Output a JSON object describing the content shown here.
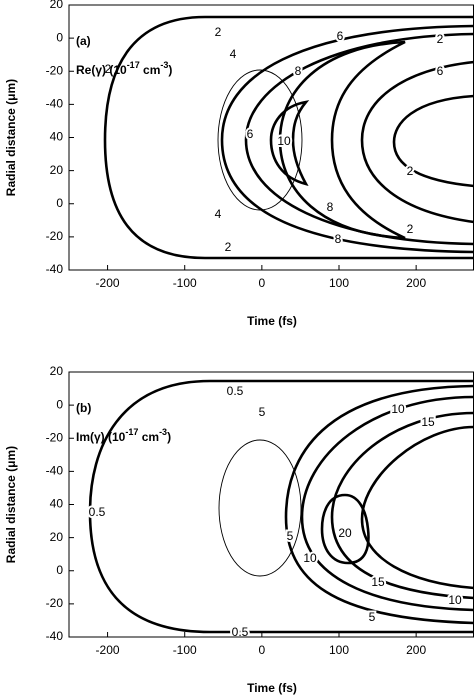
{
  "chart_data": [
    {
      "type": "contour",
      "panel_label": "(a)",
      "annotation": [
        "Re(γ) (10",
        "-17",
        " cm",
        "-3",
        ")"
      ],
      "x_label": "Time (fs)",
      "y_label": "Radial distance (μm)",
      "xlim": [
        -250,
        275
      ],
      "xticks": [
        -200,
        -100,
        0,
        100,
        200
      ],
      "ylim": [
        -40,
        120
      ],
      "yticks": [
        -40,
        -20,
        0,
        20,
        40,
        {
          "value": 60,
          "label": "-40"
        },
        {
          "value": 80,
          "label": "-20"
        },
        {
          "value": 100,
          "label": "0"
        },
        {
          "value": 120,
          "label": "20"
        }
      ],
      "levels": [
        2,
        4,
        6,
        8,
        10
      ],
      "color": "#000000"
    },
    {
      "type": "contour",
      "panel_label": "(b)",
      "annotation": [
        "Im(γ) (10",
        "-17",
        " cm",
        "-3",
        ")"
      ],
      "x_label": "Time (fs)",
      "y_label": "Radial distance (μm)",
      "xlim": [
        -250,
        275
      ],
      "xticks": [
        -200,
        -100,
        0,
        100,
        200
      ],
      "ylim": [
        -40,
        120
      ],
      "yticks": [
        -40,
        -20,
        0,
        20,
        40,
        {
          "value": 60,
          "label": "-40"
        },
        {
          "value": 80,
          "label": "-20"
        },
        {
          "value": 100,
          "label": "0"
        },
        {
          "value": 120,
          "label": "20"
        }
      ],
      "levels": [
        0.5,
        5,
        10,
        15,
        20
      ],
      "color": "#000000"
    }
  ]
}
